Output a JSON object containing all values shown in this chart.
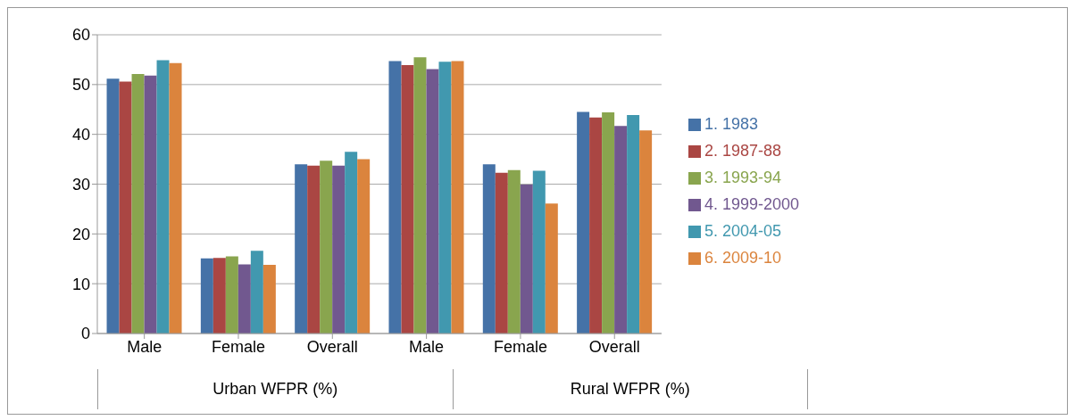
{
  "chart_data": {
    "type": "bar",
    "categories": [
      "Male",
      "Female",
      "Overall",
      "Male",
      "Female",
      "Overall"
    ],
    "series": [
      {
        "name": "1. 1983",
        "color": "#4572a7",
        "values": [
          51.2,
          15.1,
          34.0,
          54.7,
          34.0,
          44.5
        ]
      },
      {
        "name": "2. 1987-88",
        "color": "#aa4643",
        "values": [
          50.6,
          15.2,
          33.7,
          53.9,
          32.3,
          43.4
        ]
      },
      {
        "name": "3. 1993-94",
        "color": "#89a54e",
        "values": [
          52.1,
          15.5,
          34.7,
          55.5,
          32.8,
          44.4
        ]
      },
      {
        "name": "4. 1999-2000",
        "color": "#71588f",
        "values": [
          51.8,
          13.9,
          33.7,
          53.1,
          29.9,
          41.7
        ]
      },
      {
        "name": "5. 2004-05",
        "color": "#4198af",
        "values": [
          54.9,
          16.6,
          36.5,
          54.6,
          32.7,
          43.9
        ]
      },
      {
        "name": "6. 2009-10",
        "color": "#db843d",
        "values": [
          54.3,
          13.8,
          35.0,
          54.7,
          26.1,
          40.8
        ]
      }
    ],
    "ylim": [
      0,
      60
    ],
    "yticks": [
      0,
      10,
      20,
      30,
      40,
      50,
      60
    ],
    "grid": "y",
    "legend": "right",
    "annotations": [
      "Urban WFPR (%)",
      "Rural WFPR (%)"
    ]
  }
}
